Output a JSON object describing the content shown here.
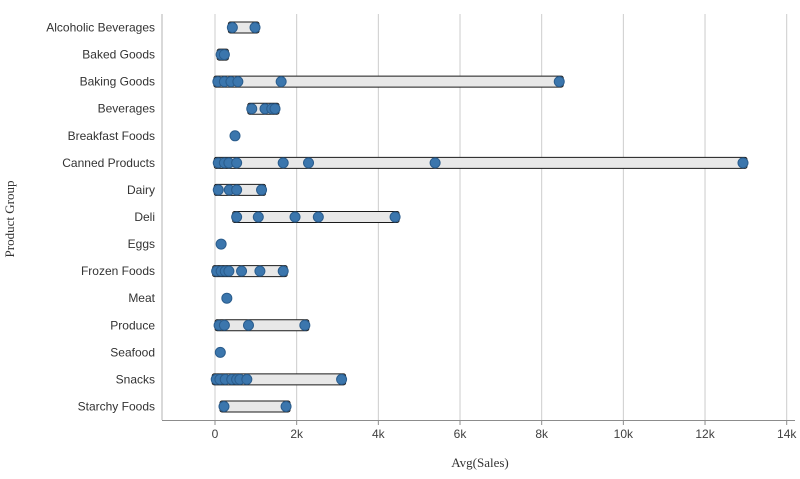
{
  "chart_data": {
    "type": "scatter",
    "subtype": "distribution-plot",
    "title": "",
    "xlabel": "Avg(Sales)",
    "ylabel": "Product Group",
    "xlim": [
      -1300,
      14200
    ],
    "grid": "vertical-on",
    "legend": "none",
    "x_ticks": [
      {
        "value": 0,
        "label": "0"
      },
      {
        "value": 2000,
        "label": "2k"
      },
      {
        "value": 4000,
        "label": "4k"
      },
      {
        "value": 6000,
        "label": "6k"
      },
      {
        "value": 8000,
        "label": "8k"
      },
      {
        "value": 10000,
        "label": "10k"
      },
      {
        "value": 12000,
        "label": "12k"
      },
      {
        "value": 14000,
        "label": "14k"
      }
    ],
    "categories": [
      "Alcoholic Beverages",
      "Baked Goods",
      "Baking Goods",
      "Beverages",
      "Breakfast Foods",
      "Canned Products",
      "Dairy",
      "Deli",
      "Eggs",
      "Frozen Foods",
      "Meat",
      "Produce",
      "Seafood",
      "Snacks",
      "Starchy Foods"
    ],
    "rows": [
      {
        "category": "Alcoholic Beverages",
        "points": [
          425,
          980
        ]
      },
      {
        "category": "Baked Goods",
        "points": [
          150,
          230
        ]
      },
      {
        "category": "Baking Goods",
        "points": [
          70,
          230,
          390,
          560,
          1620,
          8430
        ]
      },
      {
        "category": "Beverages",
        "points": [
          900,
          1225,
          1390,
          1470
        ]
      },
      {
        "category": "Breakfast Foods",
        "points": [
          490
        ]
      },
      {
        "category": "Canned Products",
        "points": [
          80,
          230,
          340,
          530,
          1670,
          2290,
          5390,
          12930
        ]
      },
      {
        "category": "Dairy",
        "points": [
          80,
          350,
          530,
          1140
        ]
      },
      {
        "category": "Deli",
        "points": [
          530,
          1060,
          1960,
          2530,
          4410
        ]
      },
      {
        "category": "Eggs",
        "points": [
          150
        ]
      },
      {
        "category": "Frozen Foods",
        "points": [
          40,
          150,
          250,
          340,
          650,
          1100,
          1670
        ]
      },
      {
        "category": "Meat",
        "points": [
          290
        ]
      },
      {
        "category": "Produce",
        "points": [
          100,
          230,
          820,
          2200
        ]
      },
      {
        "category": "Seafood",
        "points": [
          130
        ]
      },
      {
        "category": "Snacks",
        "points": [
          30,
          120,
          250,
          410,
          530,
          610,
          780,
          3100
        ]
      },
      {
        "category": "Starchy Foods",
        "points": [
          220,
          1740
        ]
      }
    ],
    "colors": {
      "point_fill": "#3b76ad",
      "point_stroke": "#2a5c8c",
      "range_bar_fill": "#e8e8e8",
      "range_bar_stroke": "#1a1a1a",
      "gridline": "#cccccc",
      "axis_line": "#8c8c8c",
      "left_axis_line": "#b3b3b3",
      "tick_text": "#404040",
      "category_text": "#333333"
    }
  }
}
